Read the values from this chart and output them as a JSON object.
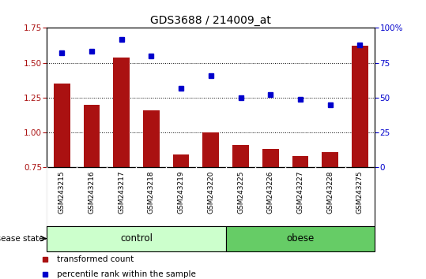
{
  "title": "GDS3688 / 214009_at",
  "samples": [
    "GSM243215",
    "GSM243216",
    "GSM243217",
    "GSM243218",
    "GSM243219",
    "GSM243220",
    "GSM243225",
    "GSM243226",
    "GSM243227",
    "GSM243228",
    "GSM243275"
  ],
  "transformed_count": [
    1.35,
    1.2,
    1.54,
    1.16,
    0.84,
    1.0,
    0.91,
    0.88,
    0.83,
    0.86,
    1.62
  ],
  "percentile_rank": [
    82,
    83,
    92,
    80,
    57,
    66,
    50,
    52,
    49,
    45,
    88
  ],
  "bar_color": "#aa1111",
  "dot_color": "#0000cc",
  "ylim_left": [
    0.75,
    1.75
  ],
  "ylim_right": [
    0,
    100
  ],
  "yticks_left": [
    0.75,
    1.0,
    1.25,
    1.5,
    1.75
  ],
  "yticks_right": [
    0,
    25,
    50,
    75,
    100
  ],
  "groups": [
    {
      "label": "control",
      "start": 0,
      "end": 6,
      "color": "#ccffcc"
    },
    {
      "label": "obese",
      "start": 6,
      "end": 11,
      "color": "#66cc66"
    }
  ],
  "group_label_prefix": "disease state",
  "legend_items": [
    {
      "label": "transformed count",
      "color": "#aa1111"
    },
    {
      "label": "percentile rank within the sample",
      "color": "#0000cc"
    }
  ],
  "title_fontsize": 10,
  "tick_fontsize": 7.5,
  "label_fontsize": 8.5,
  "xtick_fontsize": 6.5,
  "bar_width": 0.55,
  "bg_color": "#d8d8d8",
  "plot_bg_color": "#ffffff"
}
